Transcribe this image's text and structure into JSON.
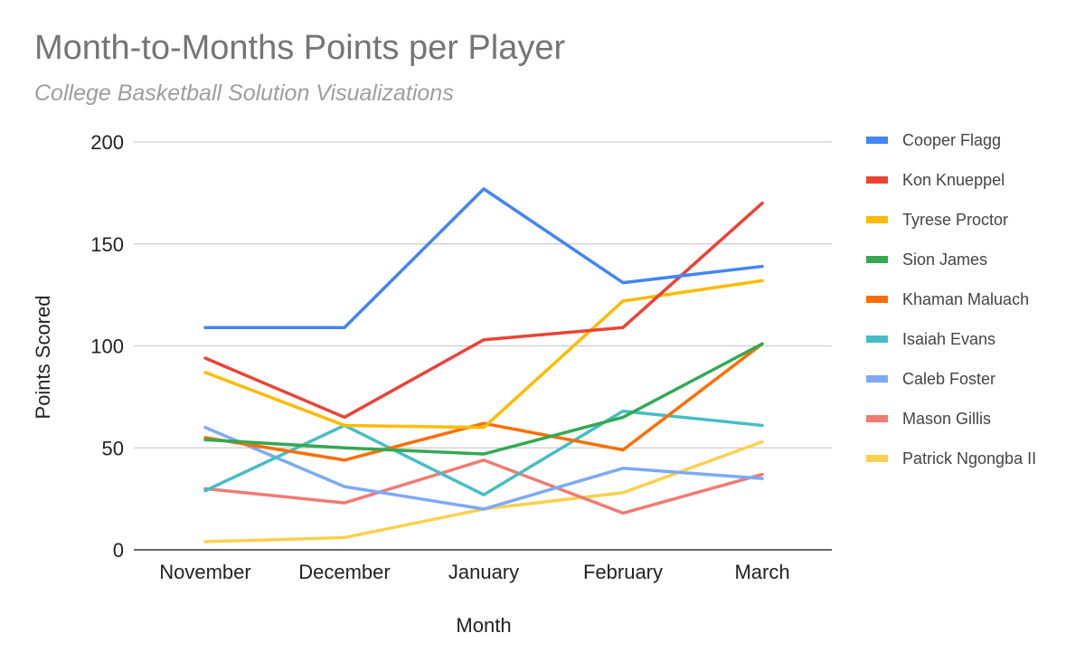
{
  "header": {
    "title": "Month-to-Months Points per Player",
    "subtitle": "College Basketball Solution Visualizations"
  },
  "chart_data": {
    "type": "line",
    "title": "Month-to-Months Points per Player",
    "subtitle": "College Basketball Solution Visualizations",
    "xlabel": "Month",
    "ylabel": "Points Scored",
    "categories": [
      "November",
      "December",
      "January",
      "February",
      "March"
    ],
    "ylim": [
      0,
      200
    ],
    "yticks": [
      0,
      50,
      100,
      150,
      200
    ],
    "grid": true,
    "legend_position": "right",
    "series": [
      {
        "name": "Cooper Flagg",
        "color": "#4285f4",
        "values": [
          109,
          109,
          177,
          131,
          139
        ]
      },
      {
        "name": "Kon Knueppel",
        "color": "#ea4335",
        "values": [
          94,
          65,
          103,
          109,
          170
        ]
      },
      {
        "name": "Tyrese Proctor",
        "color": "#fbbc04",
        "values": [
          87,
          61,
          60,
          122,
          132
        ]
      },
      {
        "name": "Sion James",
        "color": "#34a853",
        "values": [
          54,
          50,
          47,
          65,
          101
        ]
      },
      {
        "name": "Khaman Maluach",
        "color": "#ff6d01",
        "values": [
          55,
          44,
          62,
          49,
          101
        ]
      },
      {
        "name": "Isaiah Evans",
        "color": "#46bdc6",
        "values": [
          29,
          61,
          27,
          68,
          61
        ]
      },
      {
        "name": "Caleb Foster",
        "color": "#7baaf7",
        "values": [
          60,
          31,
          20,
          40,
          35
        ]
      },
      {
        "name": "Mason Gillis",
        "color": "#f07b72",
        "values": [
          30,
          23,
          44,
          18,
          37
        ]
      },
      {
        "name": "Patrick Ngongba II",
        "color": "#fcd04f",
        "values": [
          4,
          6,
          20,
          28,
          53
        ]
      }
    ]
  }
}
